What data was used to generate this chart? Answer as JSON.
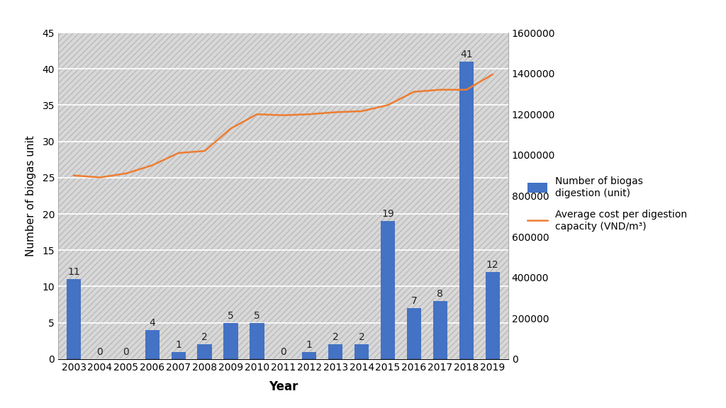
{
  "years": [
    2003,
    2004,
    2005,
    2006,
    2007,
    2008,
    2009,
    2010,
    2011,
    2012,
    2013,
    2014,
    2015,
    2016,
    2017,
    2018,
    2019
  ],
  "bar_values": [
    11,
    0,
    0,
    4,
    1,
    2,
    5,
    5,
    0,
    1,
    2,
    2,
    19,
    7,
    8,
    41,
    12
  ],
  "line_values": [
    900000,
    890000,
    910000,
    950000,
    1010000,
    1020000,
    1130000,
    1200000,
    1195000,
    1200000,
    1210000,
    1215000,
    1245000,
    1310000,
    1320000,
    1320000,
    1395000
  ],
  "bar_color": "#4472C4",
  "line_color": "#ED7D31",
  "xlabel": "Year",
  "ylabel_left": "Number of biogas unit",
  "ylim_left": [
    0,
    45
  ],
  "ylim_right": [
    0,
    1600000
  ],
  "yticks_left": [
    0,
    5,
    10,
    15,
    20,
    25,
    30,
    35,
    40,
    45
  ],
  "yticks_right": [
    0,
    200000,
    400000,
    600000,
    800000,
    1000000,
    1200000,
    1400000,
    1600000
  ],
  "legend_bar": "Number of biogas\ndigestion (unit)",
  "legend_line": "Average cost per digestion\ncapacity (VND/m³)",
  "background_color": "#e8e8e8",
  "hatch_pattern": "////",
  "hatch_color": "#c8c8c8",
  "grid_color": "#ffffff",
  "bar_width": 0.55,
  "line_width": 1.8,
  "label_fontsize": 11,
  "tick_fontsize": 10,
  "annotation_fontsize": 10,
  "legend_fontsize": 10
}
